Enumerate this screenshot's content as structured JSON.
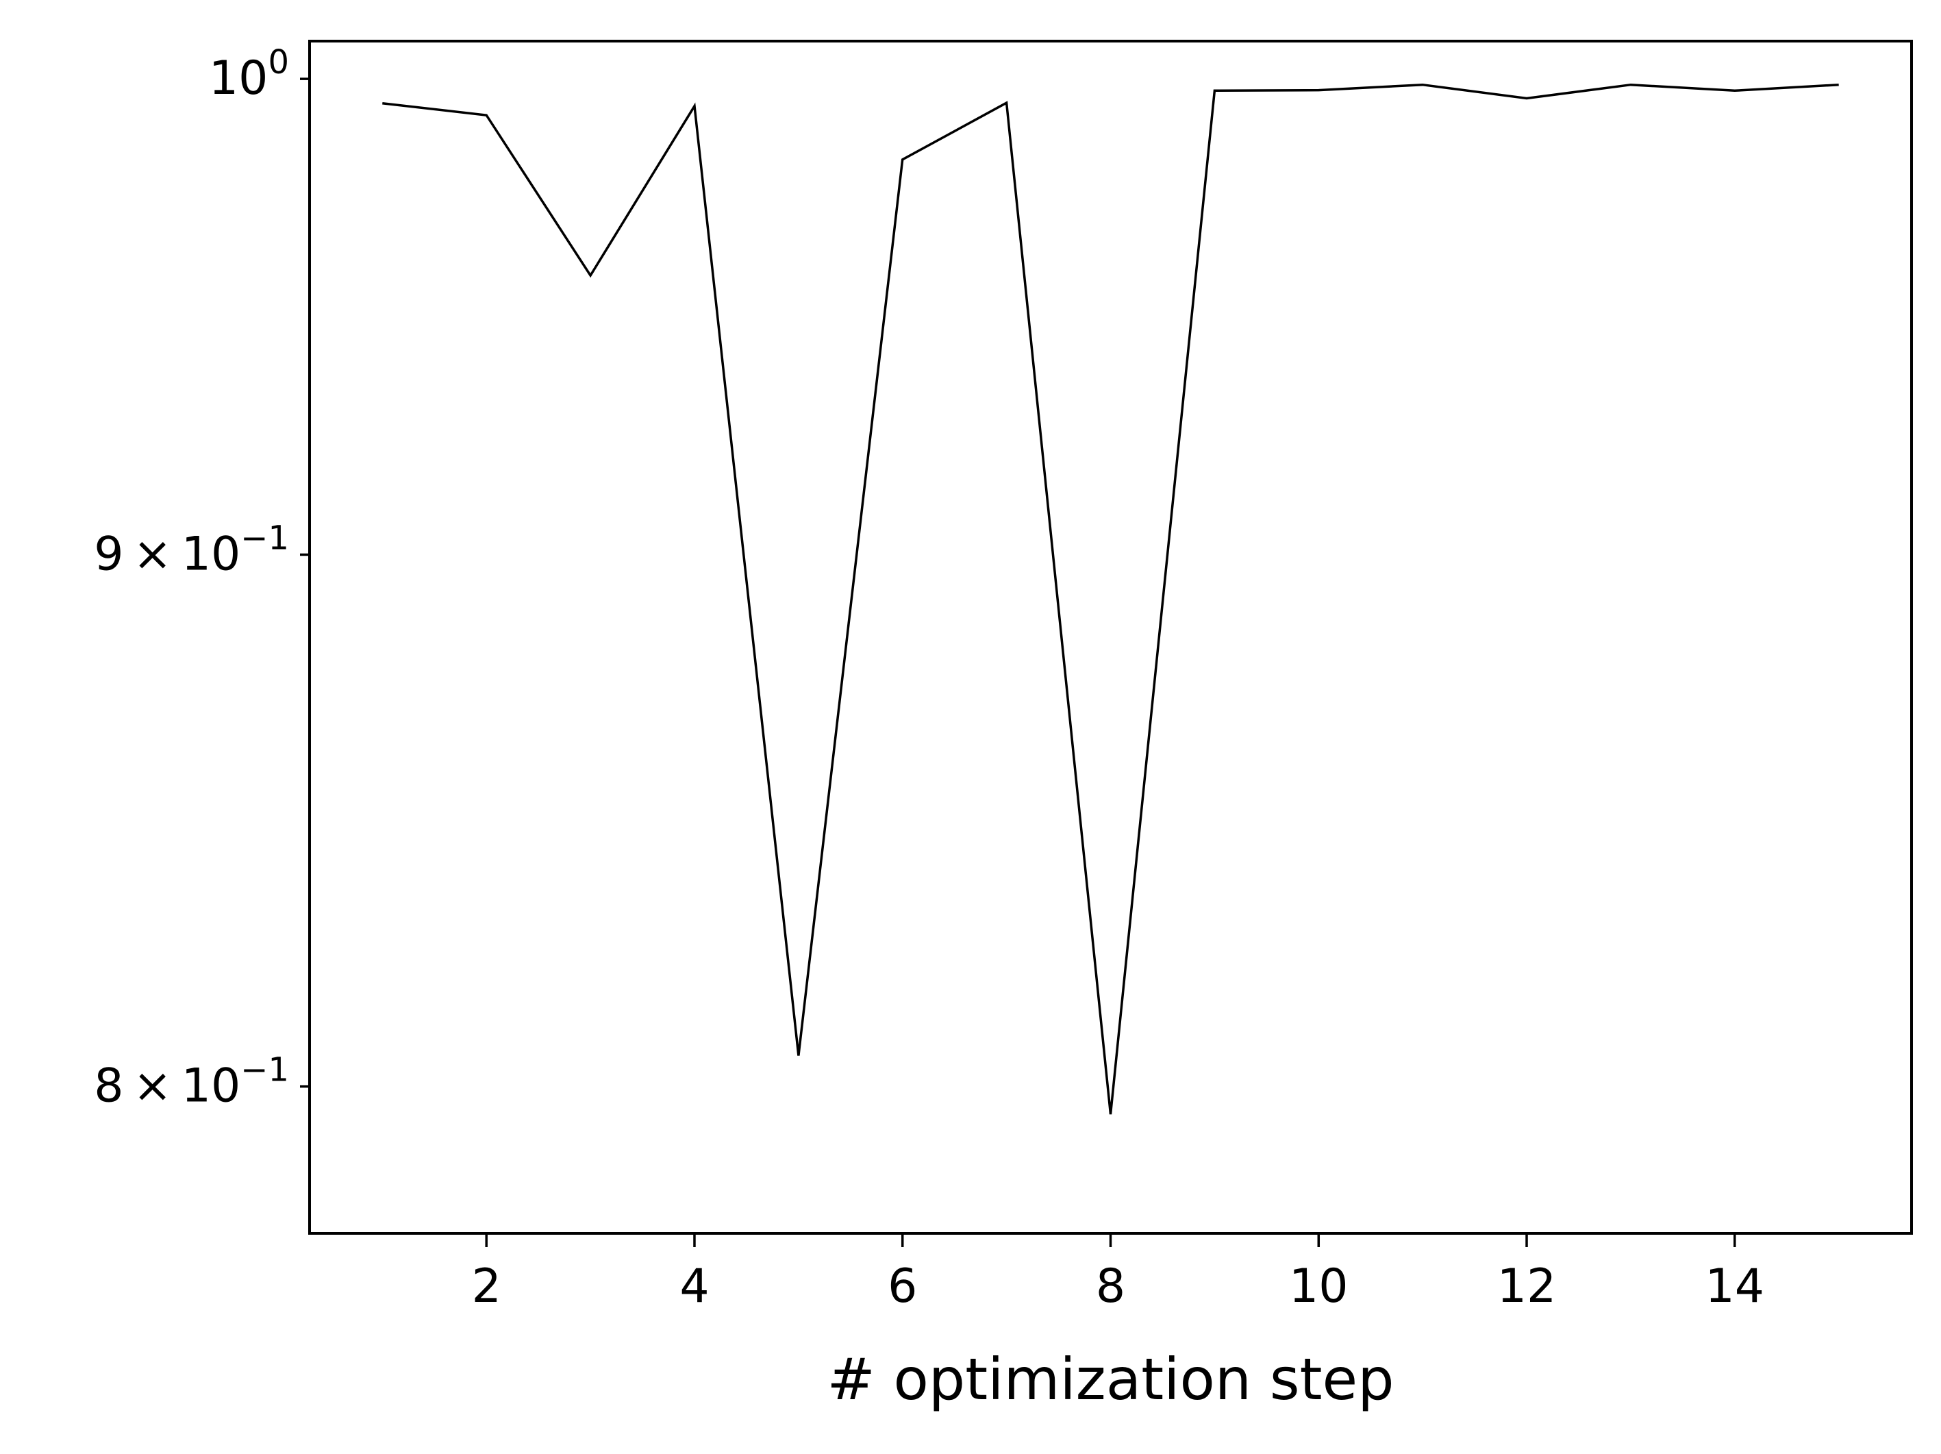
{
  "chart_data": {
    "type": "line",
    "title": "",
    "xlabel": "# optimization step",
    "ylabel": "",
    "yscale": "log",
    "grid": false,
    "xlim": [
      0.3,
      15.7
    ],
    "ylim": [
      0.7744,
      1.0084
    ],
    "x_ticks": [
      {
        "value": 2,
        "label": "2"
      },
      {
        "value": 4,
        "label": "4"
      },
      {
        "value": 6,
        "label": "6"
      },
      {
        "value": 8,
        "label": "8"
      },
      {
        "value": 10,
        "label": "10"
      },
      {
        "value": 12,
        "label": "12"
      },
      {
        "value": 14,
        "label": "14"
      }
    ],
    "y_ticks": [
      {
        "value": 1.0,
        "mantissa": "",
        "base": "10",
        "exp": "0"
      },
      {
        "value": 0.9,
        "mantissa": "9",
        "base": "10",
        "exp": "−1"
      },
      {
        "value": 0.8,
        "mantissa": "8",
        "base": "10",
        "exp": "−1"
      }
    ],
    "series": [
      {
        "color": "#000000",
        "x": [
          1,
          2,
          3,
          4,
          5,
          6,
          7,
          8,
          9,
          10,
          11,
          12,
          13,
          14,
          15
        ],
        "values": [
          0.9946,
          0.992,
          0.9574,
          0.994,
          0.8055,
          0.9823,
          0.9947,
          0.7951,
          0.9974,
          0.9975,
          0.9987,
          0.9957,
          0.9987,
          0.9974,
          0.9987
        ]
      }
    ]
  }
}
